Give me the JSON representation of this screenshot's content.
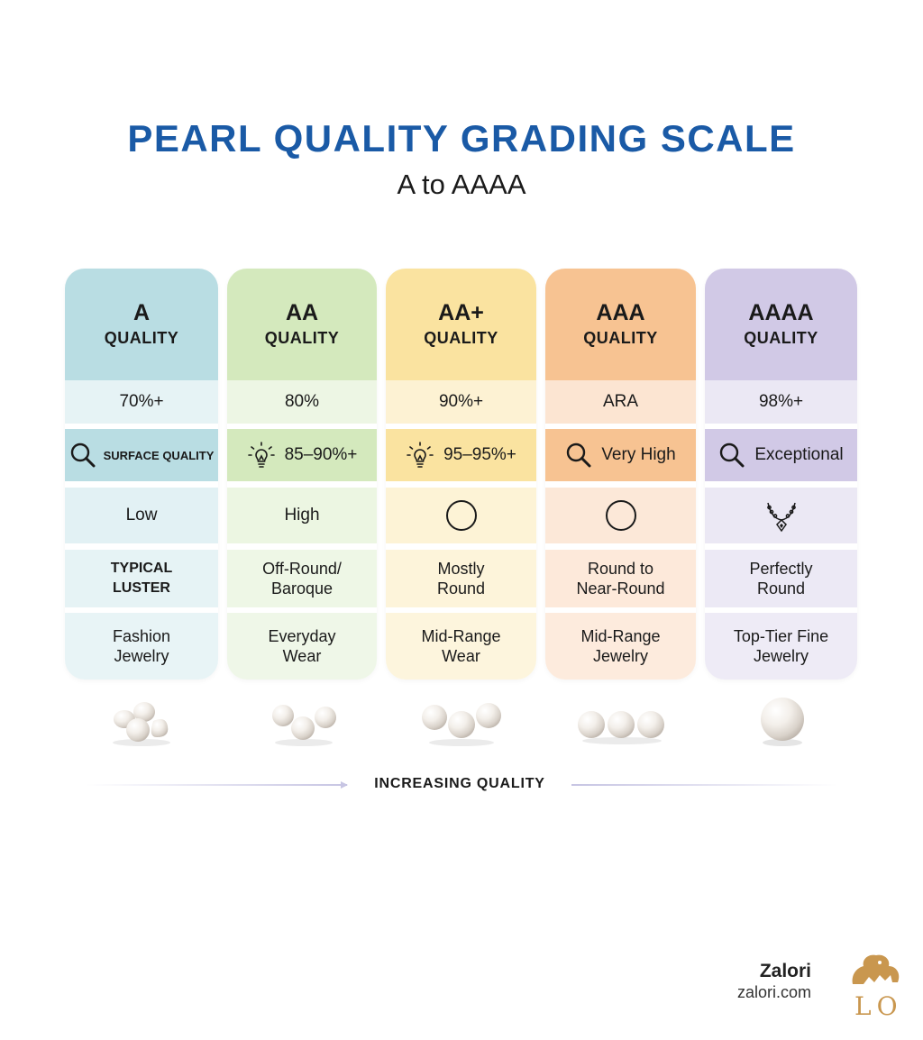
{
  "header": {
    "title": "PEARL QUALITY GRADING SCALE",
    "subtitle": "A to AAAA"
  },
  "columns": [
    {
      "grade": "A",
      "quality_label": "QUALITY",
      "row1": "70%+",
      "row2_icon": "magnifier-icon",
      "row2": "SURFACE QUALITY",
      "row3": "Low",
      "row4_line1": "TYPICAL",
      "row4_line2": "LUSTER",
      "row5_line1": "Fashion",
      "row5_line2": "Jewelry",
      "pearls": "irregular-pearl-cluster",
      "colors": {
        "head": "#b9dde3",
        "r1": "#e6f3f5",
        "r2": "#b9dde3",
        "r3": "#e2f1f4",
        "r4": "#e6f3f5",
        "r5": "#e8f4f6"
      }
    },
    {
      "grade": "AA",
      "quality_label": "QUALITY",
      "row1": "80%",
      "row2_icon": "lightbulb-icon",
      "row2": "85–90%+",
      "row3": "High",
      "row4_line1": "Off-Round/",
      "row4_line2": "Baroque",
      "row5_line1": "Everyday",
      "row5_line2": "Wear",
      "pearls": "off-round-pearl-trio",
      "colors": {
        "head": "#d4e9bd",
        "r1": "#edf6e4",
        "r2": "#d4e9bd",
        "r3": "#ecf6e2",
        "r4": "#eef7e6",
        "r5": "#eff7e8"
      }
    },
    {
      "grade": "AA+",
      "quality_label": "QUALITY",
      "row1": "90%+",
      "row2_icon": "lightbulb-icon",
      "row2": "95–95%+",
      "row3_icon": "circle-icon",
      "row4_line1": "Mostly",
      "row4_line2": "Round",
      "row5_line1": "Mid-Range",
      "row5_line2": "Wear",
      "pearls": "mostly-round-pearl-trio",
      "colors": {
        "head": "#fae3a0",
        "r1": "#fdf2d3",
        "r2": "#fae3a0",
        "r3": "#fdf3d6",
        "r4": "#fdf4da",
        "r5": "#fdf5dd"
      }
    },
    {
      "grade": "AAA",
      "quality_label": "QUALITY",
      "row1": "ARA",
      "row2_icon": "magnifier-icon",
      "row2": "Very High",
      "row3_icon": "circle-icon",
      "row4_line1": "Round to",
      "row4_line2": "Near-Round",
      "row5_line1": "Mid-Range",
      "row5_line2": "Jewelry",
      "pearls": "round-pearl-trio",
      "colors": {
        "head": "#f7c392",
        "r1": "#fce5d2",
        "r2": "#f7c392",
        "r3": "#fce8d8",
        "r4": "#fde9da",
        "r5": "#fdebdd"
      }
    },
    {
      "grade": "AAAA",
      "quality_label": "QUALITY",
      "row1": "98%+",
      "row2_icon": "magnifier-icon",
      "row2": "Exceptional",
      "row3_icon": "necklace-icon",
      "row4_line1": "Perfectly",
      "row4_line2": "Round",
      "row5_line1": "Top-Tier Fine",
      "row5_line2": "Jewelry",
      "pearls": "single-perfect-pearl",
      "colors": {
        "head": "#d1c9e6",
        "r1": "#ebe8f4",
        "r2": "#d1c9e6",
        "r3": "#ebe8f4",
        "r4": "#ecE9f5",
        "r5": "#eeebf6"
      }
    }
  ],
  "footer": {
    "arrow_label": "INCREASING QUALITY",
    "brand_name": "Zalori",
    "brand_url": "zalori.com",
    "logo_text": "LO",
    "logo_icon": "lion-icon",
    "logo_color": "#c9974f"
  }
}
